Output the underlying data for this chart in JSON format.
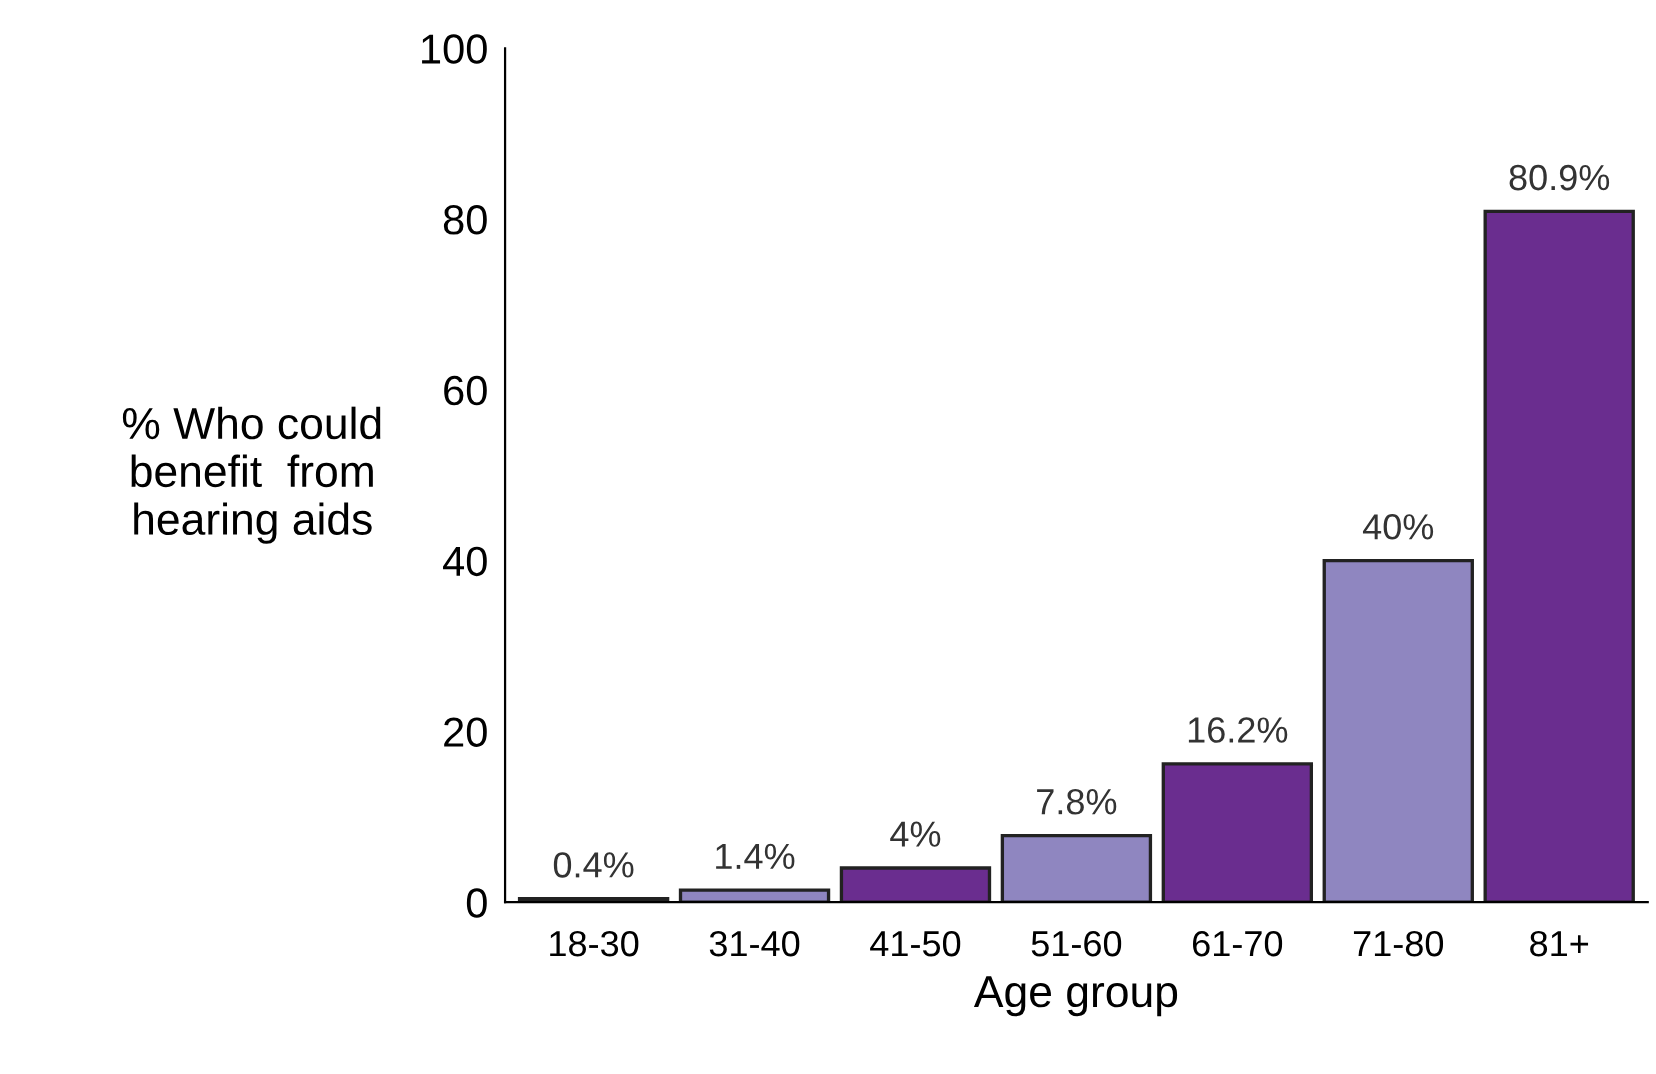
{
  "chart_data": {
    "type": "bar",
    "xlabel": "Age group",
    "ylabel": "% Who could\nbenefit  from\nhearing aids",
    "categories": [
      "18-30",
      "31-40",
      "41-50",
      "51-60",
      "61-70",
      "71-80",
      "81+"
    ],
    "values": [
      0.4,
      1.4,
      4,
      7.8,
      16.2,
      40,
      80.9
    ],
    "colors": [
      "#6a2d8f",
      "#8f86c0",
      "#6a2d8f",
      "#8f86c0",
      "#6a2d8f",
      "#8f86c0",
      "#6a2d8f"
    ],
    "value_labels": [
      "0.4%",
      "1.4%",
      "4%",
      "7.8%",
      "16.2%",
      "40%",
      "80.9%"
    ],
    "ylim": [
      0,
      100
    ],
    "yticks": [
      0,
      20,
      40,
      60,
      80,
      100
    ],
    "grid": false,
    "legend": false
  }
}
